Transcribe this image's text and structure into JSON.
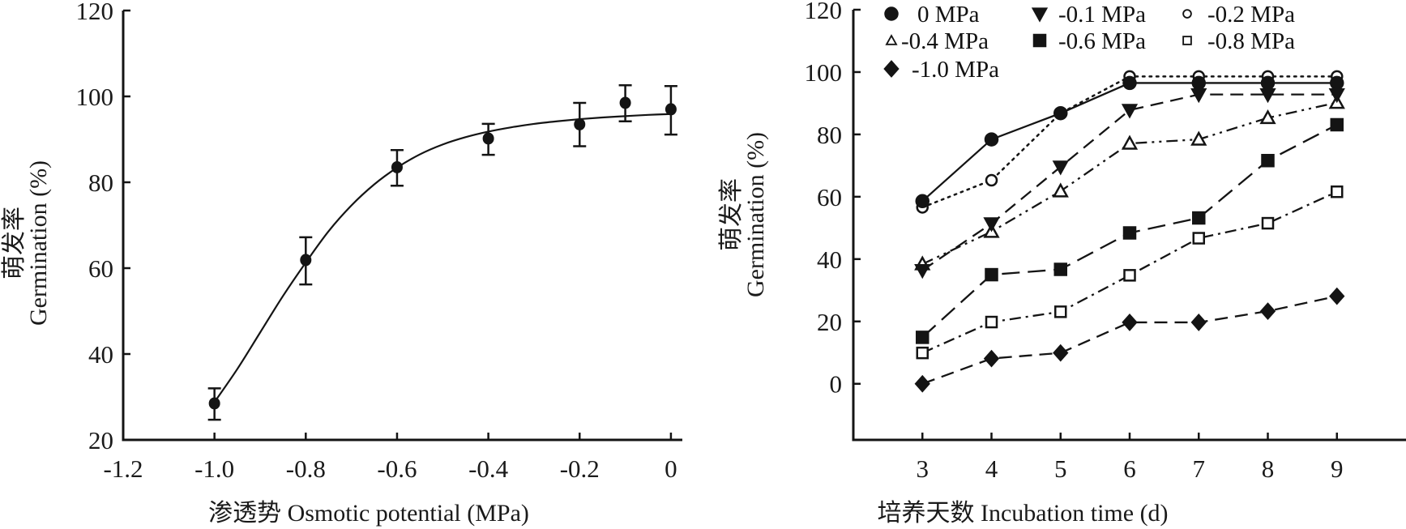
{
  "chart_data": [
    {
      "type": "scatter",
      "title": "",
      "xlabel": "渗透势 Osmotic potential (MPa)",
      "ylabel_lines": [
        "萌发率",
        "Germination (%)"
      ],
      "xlim": [
        -1.2,
        0.025
      ],
      "ylim": [
        20,
        120
      ],
      "xticks": [
        -1.2,
        -1.0,
        -0.8,
        -0.6,
        -0.4,
        -0.2,
        0
      ],
      "xtick_labels": [
        "-1.2",
        "-1.0",
        "-0.8",
        "-0.6",
        "-0.4",
        "-0.2",
        "0"
      ],
      "yticks": [
        20,
        40,
        60,
        80,
        100,
        120
      ],
      "ytick_labels": [
        "20",
        "40",
        "60",
        "80",
        "100",
        "120"
      ],
      "grid": false,
      "points": [
        {
          "x": -1.0,
          "y": 28.5,
          "err_low": 24.7,
          "err_high": 32.0
        },
        {
          "x": -0.8,
          "y": 61.9,
          "err_low": 56.2,
          "err_high": 67.2
        },
        {
          "x": -0.6,
          "y": 83.5,
          "err_low": 79.2,
          "err_high": 87.5
        },
        {
          "x": -0.4,
          "y": 90.2,
          "err_low": 86.4,
          "err_high": 93.6
        },
        {
          "x": -0.2,
          "y": 93.5,
          "err_low": 88.4,
          "err_high": 98.5
        },
        {
          "x": -0.1,
          "y": 98.5,
          "err_low": 94.2,
          "err_high": 102.6
        },
        {
          "x": 0,
          "y": 97.0,
          "err_low": 91.1,
          "err_high": 102.4
        }
      ],
      "fit_curve": {
        "kind": "sigmoid",
        "description": "3-parameter sigmoid fit",
        "x": [
          -1.0,
          -0.95,
          -0.9,
          -0.85,
          -0.8,
          -0.75,
          -0.7,
          -0.65,
          -0.6,
          -0.55,
          -0.5,
          -0.45,
          -0.4,
          -0.35,
          -0.3,
          -0.25,
          -0.2,
          -0.15,
          -0.1,
          -0.05,
          0
        ],
        "y": [
          28.8,
          36.5,
          45.0,
          53.5,
          61.3,
          68.6,
          74.6,
          79.5,
          83.4,
          86.5,
          88.8,
          90.5,
          91.8,
          92.8,
          93.6,
          94.2,
          94.7,
          95.1,
          95.4,
          95.7,
          95.9
        ]
      }
    },
    {
      "type": "line",
      "title": "",
      "xlabel": "培养天数 Incubation time (d)",
      "ylabel_lines": [
        "萌发率",
        "Germination (%)"
      ],
      "xlim": [
        2,
        10
      ],
      "ylim": [
        -18,
        120
      ],
      "x": [
        3,
        4,
        5,
        6,
        7,
        8,
        9
      ],
      "xtick_labels": [
        "3",
        "4",
        "5",
        "6",
        "7",
        "8",
        "9"
      ],
      "yticks": [
        0,
        20,
        40,
        60,
        80,
        100,
        120
      ],
      "ytick_labels": [
        "0",
        "20",
        "40",
        "60",
        "80",
        "100",
        "120"
      ],
      "grid": false,
      "legend_position": "top-left",
      "series": [
        {
          "name": "0 MPa",
          "marker": "circle-filled",
          "line": "solid",
          "values": [
            58.6,
            78.4,
            86.8,
            96.5,
            96.5,
            96.5,
            96.5
          ]
        },
        {
          "name": "-0.1 MPa",
          "marker": "triangle-down-filled",
          "line": "dashed",
          "values": [
            36.4,
            51.4,
            69.6,
            87.8,
            92.8,
            92.8,
            92.8
          ]
        },
        {
          "name": "-0.2 MPa",
          "marker": "circle-open",
          "line": "dotted",
          "values": [
            56.6,
            65.3,
            86.8,
            98.6,
            98.6,
            98.6,
            98.6
          ]
        },
        {
          "name": "-0.4 MPa",
          "marker": "triangle-up-open",
          "line": "dash-dot-dot",
          "values": [
            38.4,
            48.8,
            61.8,
            77.1,
            78.4,
            85.3,
            90.2
          ]
        },
        {
          "name": "-0.6 MPa",
          "marker": "square-filled",
          "line": "long-dash",
          "values": [
            14.9,
            35.0,
            36.7,
            48.4,
            53.2,
            71.6,
            83.1
          ]
        },
        {
          "name": "-0.8 MPa",
          "marker": "square-open",
          "line": "dash-dot",
          "values": [
            9.9,
            19.8,
            23.1,
            34.8,
            46.7,
            51.5,
            61.6
          ]
        },
        {
          "name": "-1.0 MPa",
          "marker": "diamond-filled",
          "line": "dashed",
          "values": [
            0,
            8.1,
            9.9,
            19.7,
            19.7,
            23.3,
            28.1
          ]
        }
      ]
    }
  ]
}
